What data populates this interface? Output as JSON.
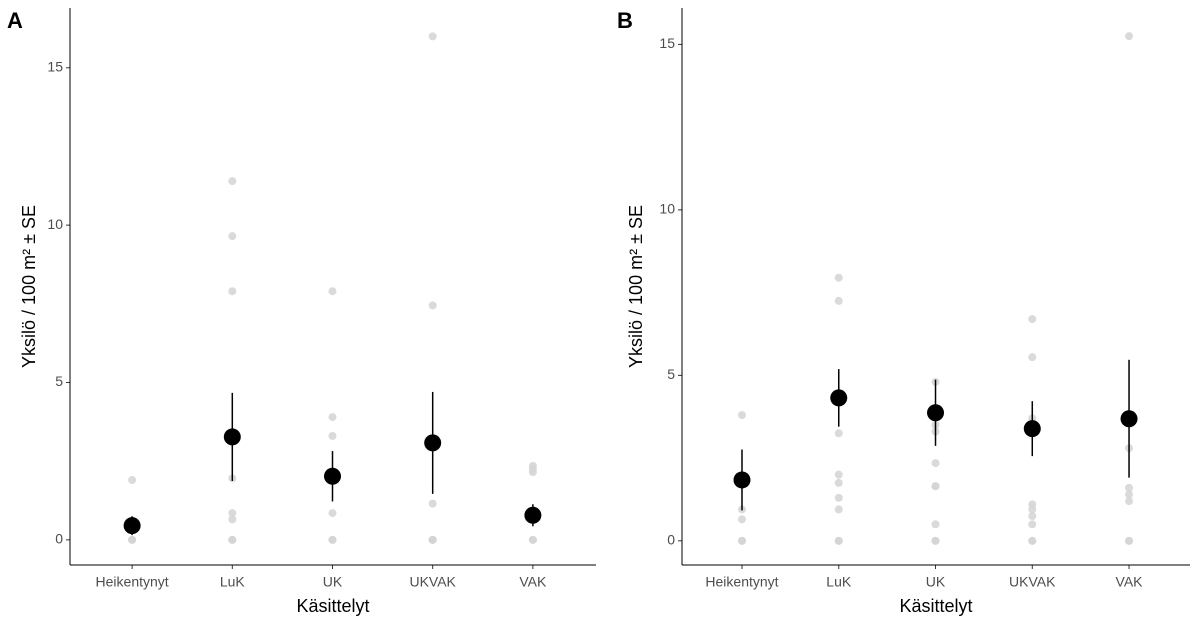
{
  "chart_data": [
    {
      "type": "dotplot",
      "panel": "A",
      "xlabel": "Käsittelyt",
      "ylabel": "Yksilö / 100 m² ± SE",
      "categories": [
        "Heikentynyt",
        "LuK",
        "UK",
        "UKVAK",
        "VAK"
      ],
      "points": [
        [
          1.9,
          0,
          0,
          0
        ],
        [
          11.4,
          9.65,
          7.9,
          1.95,
          0.85,
          0.65,
          0,
          0
        ],
        [
          7.9,
          3.9,
          3.3,
          0.85,
          0,
          0
        ],
        [
          16.0,
          7.45,
          1.15,
          0,
          0,
          0
        ],
        [
          2.35,
          2.25,
          2.15,
          0,
          0
        ]
      ],
      "mean": [
        0.45,
        3.27,
        2.02,
        3.08,
        0.78
      ],
      "se": [
        0.3,
        1.4,
        0.8,
        1.62,
        0.35
      ],
      "point_color": "#d3d3d3",
      "mean_color": "#000000",
      "ylim": [
        -0.8,
        16.9
      ],
      "yticks": [
        0,
        5,
        10,
        15
      ]
    },
    {
      "type": "dotplot",
      "panel": "B",
      "xlabel": "Käsittelyt",
      "ylabel": "Yksilö / 100 m² ± SE",
      "categories": [
        "Heikentynyt",
        "LuK",
        "UK",
        "UKVAK",
        "VAK"
      ],
      "points": [
        [
          3.8,
          0.95,
          0.65,
          0,
          0
        ],
        [
          7.95,
          7.25,
          3.25,
          2.0,
          1.75,
          1.3,
          0.95,
          0,
          0
        ],
        [
          4.8,
          3.5,
          3.3,
          2.35,
          1.65,
          1.65,
          0.5,
          0,
          0
        ],
        [
          6.7,
          5.55,
          3.7,
          1.1,
          0.95,
          0.75,
          0.5,
          0,
          0
        ],
        [
          15.25,
          2.8,
          1.6,
          1.4,
          1.2,
          0,
          0
        ]
      ],
      "mean": [
        1.84,
        4.32,
        3.87,
        3.39,
        3.69
      ],
      "se": [
        0.92,
        0.87,
        1.0,
        0.83,
        1.78
      ],
      "point_color": "#d3d3d3",
      "mean_color": "#000000",
      "ylim": [
        -0.73,
        16.1
      ],
      "yticks": [
        0,
        5,
        10,
        15
      ]
    }
  ]
}
